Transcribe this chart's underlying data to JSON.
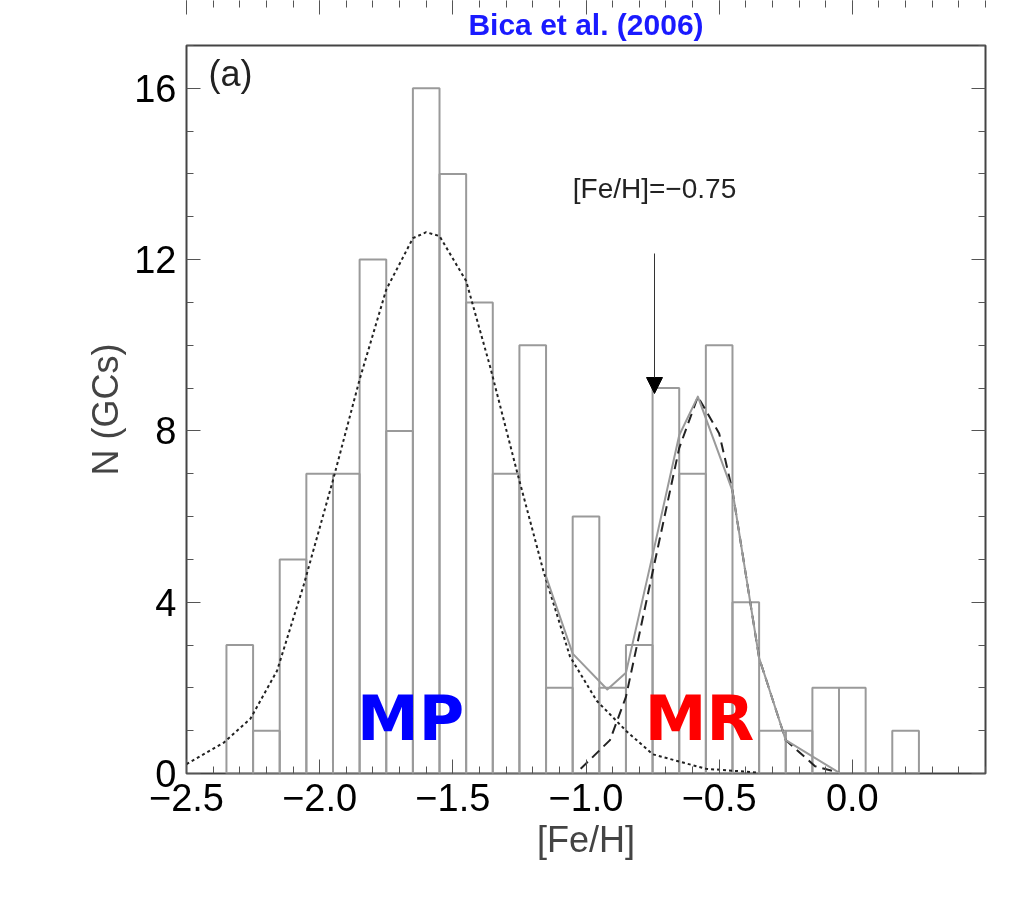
{
  "chart_data": {
    "type": "histogram",
    "title": "Bica et al. (2006)",
    "xlabel": "[Fe/H]",
    "ylabel": "N (GCs)",
    "bins": [
      -2.35,
      -2.25,
      -2.15,
      -2.05,
      -1.95,
      -1.85,
      -1.75,
      -1.65,
      -1.55,
      -1.45,
      -1.35,
      -1.25,
      -1.15,
      -1.05,
      -0.95,
      -0.85,
      -0.75,
      -0.65,
      -0.55,
      -0.45,
      -0.35,
      -0.25,
      -0.15,
      -0.05,
      0.05,
      0.15,
      0.25
    ],
    "values": [
      3,
      1,
      5,
      7,
      7,
      12,
      8,
      16,
      14,
      11,
      7,
      10,
      2,
      6,
      2,
      3,
      9,
      7,
      10,
      4,
      1,
      1,
      2,
      2,
      0,
      1
    ],
    "color": "#9a9a9a",
    "series": [
      {
        "type": "line",
        "color": "#222222",
        "line_style": "dotted",
        "x": [
          -2.5,
          -2.36,
          -2.26,
          -2.16,
          -2.06,
          -1.95,
          -1.85,
          -1.75,
          -1.65,
          -1.6,
          -1.55,
          -1.45,
          -1.36,
          -1.26,
          -1.16,
          -1.06,
          -0.96,
          -0.85,
          -0.75,
          -0.55,
          -0.35
        ],
        "values": [
          0.22,
          0.72,
          1.28,
          2.4,
          4.4,
          6.85,
          9.2,
          11.3,
          12.5,
          12.64,
          12.55,
          11.5,
          9.5,
          7.07,
          4.73,
          2.73,
          1.7,
          1.0,
          0.45,
          0.11,
          0.02
        ]
      },
      {
        "type": "line",
        "color": "#222222",
        "line_style": "dashed",
        "x": [
          -1.02,
          -0.91,
          -0.85,
          -0.75,
          -0.65,
          -0.58,
          -0.5,
          -0.45,
          -0.35,
          -0.25,
          -0.14,
          -0.05
        ],
        "values": [
          0.11,
          0.78,
          1.79,
          4.7,
          7.6,
          8.8,
          7.94,
          6.6,
          2.7,
          0.78,
          0.17,
          0.02
        ]
      },
      {
        "type": "line",
        "color": "#9a9a9a",
        "line_style": "solid",
        "x": [
          -1.15,
          -1.05,
          -0.92,
          -0.85,
          -0.75,
          -0.65,
          -0.58,
          -0.45,
          -0.35,
          -0.25,
          -0.05
        ],
        "values": [
          4.6,
          2.8,
          1.96,
          2.35,
          5.1,
          7.9,
          8.8,
          6.6,
          2.7,
          0.78,
          0.02
        ]
      }
    ],
    "xlim": [
      -2.5,
      0.5
    ],
    "ylim": [
      0,
      17
    ],
    "xticks": [
      {
        "value": -2.5,
        "label": "−2.5"
      },
      {
        "value": -2.0,
        "label": "−2.0"
      },
      {
        "value": -1.5,
        "label": "−1.5"
      },
      {
        "value": -1.0,
        "label": "−1.0"
      },
      {
        "value": -0.5,
        "label": "−0.5"
      },
      {
        "value": 0.0,
        "label": "0.0"
      }
    ],
    "yticks": [
      0,
      4,
      8,
      12,
      16
    ],
    "annotations": [
      "(a)",
      "[Fe/H]=−0.75",
      "MP",
      "MR"
    ]
  }
}
